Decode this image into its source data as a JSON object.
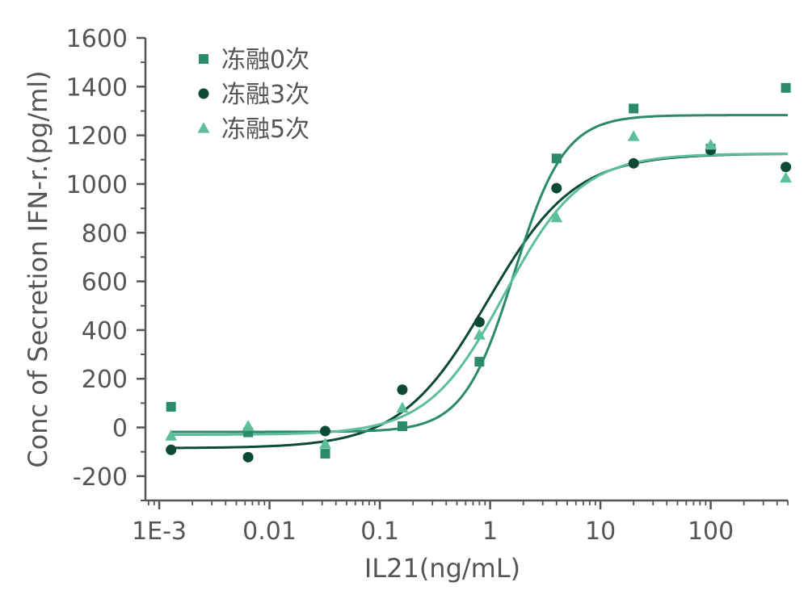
{
  "chart_data": {
    "type": "scatter",
    "title": "",
    "xlabel": "IL21(ng/mL)",
    "ylabel": "Conc of Secretion IFN-r.(pg/ml)",
    "xscale": "log",
    "xlim": [
      0.00075,
      500
    ],
    "ylim": [
      -300,
      1600
    ],
    "x_tick_values": [
      0.001,
      0.01,
      0.1,
      1,
      10,
      100
    ],
    "x_tick_labels": [
      "1E-3",
      "0.01",
      "0.1",
      "1",
      "10",
      "100"
    ],
    "y_tick_values": [
      -200,
      0,
      200,
      400,
      600,
      800,
      1000,
      1200,
      1400,
      1600
    ],
    "y_tick_labels": [
      "-200",
      "0",
      "200",
      "400",
      "600",
      "800",
      "1000",
      "1200",
      "1400",
      "1600"
    ],
    "legend_position": "top-left",
    "x": [
      0.00128,
      0.0064,
      0.032,
      0.16,
      0.8,
      4,
      20,
      100,
      480
    ],
    "series": [
      {
        "name": "冻融0次",
        "marker": "square",
        "color": "#2a8a6a",
        "values": [
          85,
          -20,
          -108,
          5,
          270,
          1105,
          1310,
          1145,
          1395
        ],
        "fit": {
          "bottom": -18,
          "top": 1283,
          "ec50": 1.65,
          "hill": 1.9
        }
      },
      {
        "name": "冻融3次",
        "marker": "circle",
        "color": "#0c4a36",
        "values": [
          -92,
          -122,
          -15,
          155,
          433,
          983,
          1085,
          1140,
          1070
        ],
        "fit": {
          "bottom": -85,
          "top": 1125,
          "ec50": 0.95,
          "hill": 1.1
        }
      },
      {
        "name": "冻融5次",
        "marker": "triangle",
        "color": "#5cbf9a",
        "values": [
          -35,
          5,
          -68,
          80,
          380,
          862,
          1195,
          1160,
          1025
        ],
        "fit": {
          "bottom": -30,
          "top": 1125,
          "ec50": 1.35,
          "hill": 1.25
        }
      }
    ]
  }
}
